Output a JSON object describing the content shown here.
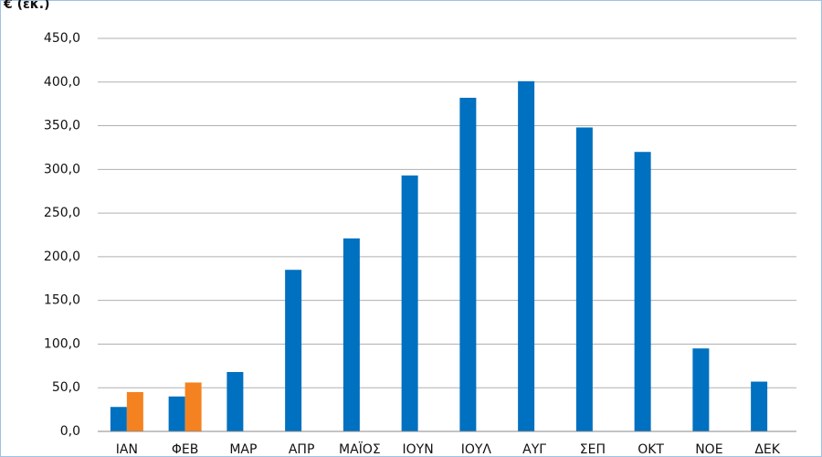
{
  "chart_data": {
    "type": "bar",
    "title": "€ (εκ.)",
    "categories": [
      "ΙΑΝ",
      "ΦΕΒ",
      "ΜΑΡ",
      "ΑΠΡ",
      "ΜΑΪΟΣ",
      "ΙΟΥΝ",
      "ΙΟΥΛ",
      "ΑΥΓ",
      "ΣΕΠ",
      "ΟΚΤ",
      "ΝΟΕ",
      "ΔΕΚ"
    ],
    "series": [
      {
        "color": "#0070c0",
        "values": [
          28,
          40,
          68,
          185,
          221,
          293,
          382,
          401,
          348,
          320,
          95,
          57
        ]
      },
      {
        "color": "#f58220",
        "values": [
          45,
          56,
          null,
          null,
          null,
          null,
          null,
          null,
          null,
          null,
          null,
          null
        ]
      }
    ],
    "ylim": [
      0,
      450
    ],
    "yticks": [
      {
        "value": 0,
        "label": "0,0"
      },
      {
        "value": 50,
        "label": "50,0"
      },
      {
        "value": 100,
        "label": "100,0"
      },
      {
        "value": 150,
        "label": "150,0"
      },
      {
        "value": 200,
        "label": "200,0"
      },
      {
        "value": 250,
        "label": "250,0"
      },
      {
        "value": 300,
        "label": "300,0"
      },
      {
        "value": 350,
        "label": "350,0"
      },
      {
        "value": 400,
        "label": "400,0"
      },
      {
        "value": 450,
        "label": "450,0"
      }
    ],
    "grid": true
  }
}
